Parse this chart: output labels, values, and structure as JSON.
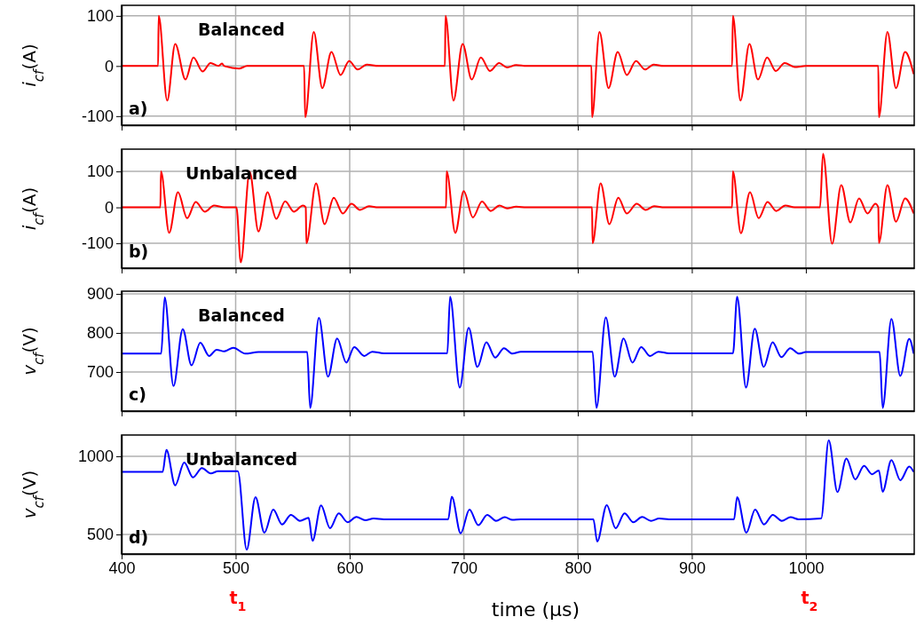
{
  "chart_data": [
    {
      "type": "line",
      "ylabel": "i$_{cf}$(A)",
      "xlim": [
        400,
        1095
      ],
      "xticks": [
        400,
        500,
        600,
        700,
        800,
        900,
        1000
      ],
      "ylim": [
        -118,
        121
      ],
      "yticks": [
        -100,
        0,
        100
      ],
      "grid": true,
      "tick_labels": "y",
      "annotations": [
        "Balanced",
        "a)"
      ],
      "x": [
        400,
        432,
        432.5,
        440,
        447,
        456,
        463,
        471,
        478,
        485,
        488,
        490,
        503,
        510,
        560,
        561,
        568.5,
        576,
        584,
        592,
        599.5,
        607,
        615,
        625,
        683.5,
        684,
        691,
        699,
        707,
        715,
        723,
        731,
        738,
        746,
        755,
        812,
        812.5,
        819,
        827,
        835,
        843,
        851,
        859,
        866.5,
        875,
        935.3,
        936,
        942.6,
        950.5,
        958,
        966,
        973.6,
        981.4,
        990,
        1000,
        1063.5,
        1064,
        1071.5,
        1079,
        1087,
        1094.5
      ],
      "series": [
        {
          "color": "#ff0000",
          "values": [
            0,
            0,
            100,
            -69,
            44,
            -27,
            17,
            -11,
            6,
            0,
            5,
            0,
            -5,
            0,
            0,
            -102,
            68,
            -44,
            28,
            -18,
            10,
            -7,
            3,
            0,
            0,
            100,
            -69,
            44,
            -27,
            17,
            -10,
            6,
            -3,
            2,
            0,
            0,
            -102,
            68,
            -44,
            28,
            -18,
            10,
            -7,
            3,
            0,
            0,
            100,
            -69,
            44,
            -27,
            17,
            -10,
            6,
            -2,
            0,
            0,
            -102,
            68,
            -44,
            28,
            -16
          ]
        }
      ]
    },
    {
      "type": "line",
      "ylabel": "i$_{cf}$(A)",
      "xlim": [
        400,
        1095
      ],
      "xticks": [
        400,
        500,
        600,
        700,
        800,
        900,
        1000
      ],
      "ylim": [
        -169,
        162
      ],
      "yticks": [
        -100,
        0,
        100
      ],
      "grid": true,
      "tick_labels": "y",
      "annotations": [
        "Unbalanced",
        "b)"
      ],
      "x": [
        400,
        434,
        434.5,
        441.7,
        449.4,
        457.5,
        465,
        473,
        481,
        490,
        500.7,
        504.5,
        512.3,
        520,
        528,
        535.6,
        543.4,
        551,
        559,
        561.5,
        562,
        570.5,
        578,
        586,
        594,
        601.6,
        609,
        617,
        625,
        684.5,
        685,
        692.6,
        700,
        708,
        716,
        723.7,
        731.4,
        738,
        746,
        755,
        812.5,
        813,
        820,
        827.7,
        835.5,
        843,
        851.7,
        859.5,
        867,
        876,
        935.3,
        936,
        943,
        951,
        958.6,
        966.4,
        974,
        982,
        990,
        1012.4,
        1015,
        1023,
        1031,
        1039,
        1046.6,
        1054,
        1061,
        1063.5,
        1064,
        1071.5,
        1079,
        1087,
        1094.5
      ],
      "series": [
        {
          "color": "#ff0000",
          "values": [
            0,
            0,
            100,
            -71,
            42,
            -30,
            15,
            -12,
            5,
            0,
            0,
            -153,
            99,
            -67,
            42,
            -32,
            17,
            -12,
            5,
            0,
            -100,
            67,
            -47,
            27,
            -17,
            10,
            -7,
            3,
            0,
            0,
            100,
            -71,
            45,
            -28,
            16,
            -10,
            5,
            -3,
            2,
            0,
            0,
            -100,
            67,
            -47,
            27,
            -17,
            10,
            -7,
            3,
            0,
            0,
            100,
            -72,
            42,
            -30,
            15,
            -10,
            5,
            0,
            0,
            149,
            -101,
            62,
            -42,
            25,
            -17,
            10,
            0,
            -99,
            62,
            -40,
            25,
            -17
          ]
        }
      ]
    },
    {
      "type": "line",
      "ylabel": "v$_{cf}$(V)",
      "xlim": [
        400,
        1095
      ],
      "xticks": [
        400,
        500,
        600,
        700,
        800,
        900,
        1000
      ],
      "ylim": [
        600,
        907
      ],
      "yticks": [
        700,
        800,
        900
      ],
      "grid": true,
      "tick_labels": "y",
      "annotations": [
        "Balanced",
        "c)"
      ],
      "x": [
        400,
        434.7,
        437.8,
        445.5,
        453.6,
        461.3,
        469,
        476.8,
        483.3,
        490,
        498,
        508.4,
        520,
        562.8,
        565.3,
        573,
        581,
        589,
        597,
        604,
        612.7,
        619.7,
        630,
        685.6,
        688,
        696.5,
        704.3,
        712,
        719.8,
        727.6,
        735.3,
        742.6,
        750,
        813,
        816.3,
        824.6,
        832.4,
        840.1,
        847.9,
        855.6,
        863.4,
        870.6,
        880,
        936.1,
        939.7,
        947.5,
        955.2,
        963,
        970.8,
        978.5,
        986.3,
        994,
        1000,
        1064.7,
        1067.3,
        1075,
        1082.8,
        1090.6,
        1094.5
      ],
      "series": [
        {
          "color": "#0000ff",
          "values": [
            747,
            747,
            891,
            664,
            810,
            717,
            775,
            741,
            757,
            753,
            762,
            747,
            751,
            751,
            608,
            839,
            688,
            786,
            724,
            764,
            741,
            752,
            748,
            748,
            893,
            660,
            813,
            713,
            776,
            737,
            761,
            747,
            752,
            752,
            608,
            840,
            688,
            786,
            724,
            764,
            741,
            752,
            748,
            748,
            893,
            660,
            811,
            713,
            776,
            738,
            761,
            747,
            751,
            751,
            608,
            836,
            690,
            785,
            747
          ]
        }
      ]
    },
    {
      "type": "line",
      "ylabel": "v$_{cf}$(V)",
      "xlabel": "time (μs)",
      "xlim": [
        400,
        1095
      ],
      "xticks": [
        400,
        500,
        600,
        700,
        800,
        900,
        1000
      ],
      "ylim": [
        375,
        1136
      ],
      "yticks": [
        500,
        1000
      ],
      "grid": true,
      "annotations": [
        "Unbalanced",
        "d)",
        "t$_{1}$",
        "t$_{2}$"
      ],
      "x": [
        400,
        436,
        439.3,
        447,
        454.9,
        462.6,
        470.4,
        478.2,
        484.6,
        501.9,
        509.7,
        517.4,
        525.2,
        533,
        540.7,
        548.5,
        556.3,
        564,
        567.4,
        574.9,
        582.7,
        590.4,
        598.2,
        605.9,
        613.7,
        621,
        630,
        686.4,
        689.5,
        697.3,
        705,
        712.8,
        720.6,
        728.3,
        736,
        742.6,
        750,
        813.7,
        817,
        825.4,
        833.2,
        841,
        848.7,
        856.4,
        864.2,
        871.4,
        880,
        937,
        939.7,
        947.8,
        955.5,
        963.3,
        971,
        978.8,
        986.6,
        993.6,
        1013.4,
        1020,
        1027.7,
        1035.5,
        1043.3,
        1051,
        1058,
        1064,
        1067.3,
        1075,
        1082.8,
        1090.6,
        1094.5
      ],
      "series": [
        {
          "color": "#0000ff",
          "values": [
            900,
            900,
            1041,
            814,
            960,
            865,
            924,
            890,
            905,
            905,
            402,
            739,
            511,
            659,
            564,
            625,
            587,
            606,
            459,
            686,
            540,
            635,
            578,
            612,
            591,
            602,
            597,
            597,
            742,
            507,
            659,
            559,
            625,
            587,
            610,
            593,
            597,
            597,
            455,
            688,
            540,
            635,
            578,
            612,
            587,
            602,
            597,
            597,
            739,
            511,
            659,
            564,
            625,
            587,
            610,
            597,
            602,
            1102,
            771,
            985,
            852,
            938,
            885,
            909,
            773,
            976,
            847,
            934,
            900
          ]
        }
      ]
    }
  ]
}
